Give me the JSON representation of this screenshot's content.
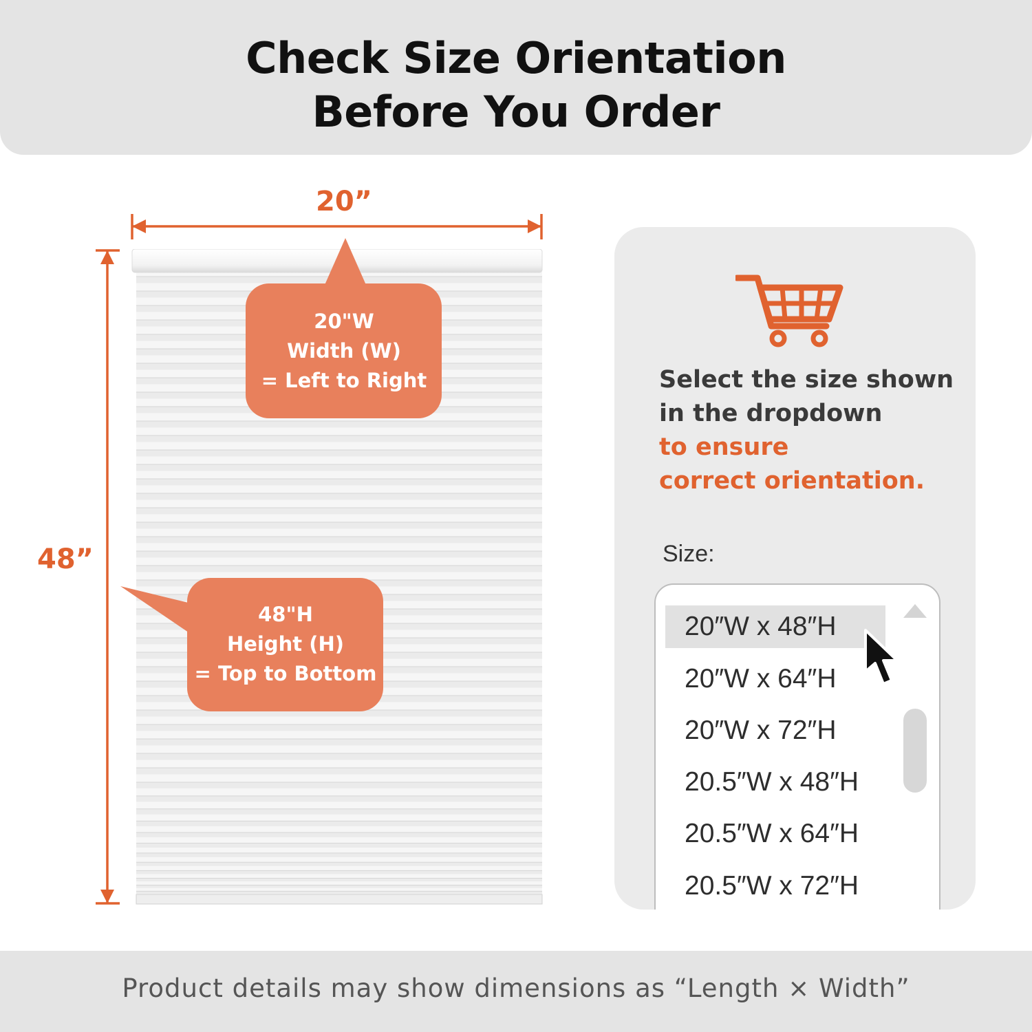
{
  "header": {
    "title_line1": "Check Size Orientation",
    "title_line2": "Before You Order"
  },
  "diagram": {
    "width_label": "20”",
    "height_label": "48”",
    "width_callout": [
      "20\"W",
      "Width (W)",
      "= Left to Right"
    ],
    "height_callout": [
      "48\"H",
      "Height (H)",
      "= Top to Bottom"
    ]
  },
  "panel": {
    "message_line1": "Select the size shown",
    "message_line2": "in the dropdown",
    "accent_line1": "to ensure",
    "accent_line2": "correct orientation.",
    "size_label": "Size:",
    "options": [
      "20″W x 48″H",
      "20″W x 64″H",
      "20″W x 72″H",
      "20.5″W x 48″H",
      "20.5″W x 64″H",
      "20.5″W x 72″H"
    ],
    "selected_option": "20″W x 48″H"
  },
  "footer": {
    "note": "Product details may show dimensions as “Length × Width”"
  },
  "icons": [
    "shopping-cart-icon",
    "mouse-pointer-icon",
    "scroll-up-arrow-icon"
  ],
  "colors": {
    "accent": "#e0622f",
    "callout": "#e8805c",
    "band": "#e4e4e4",
    "panel": "#ebebeb"
  }
}
